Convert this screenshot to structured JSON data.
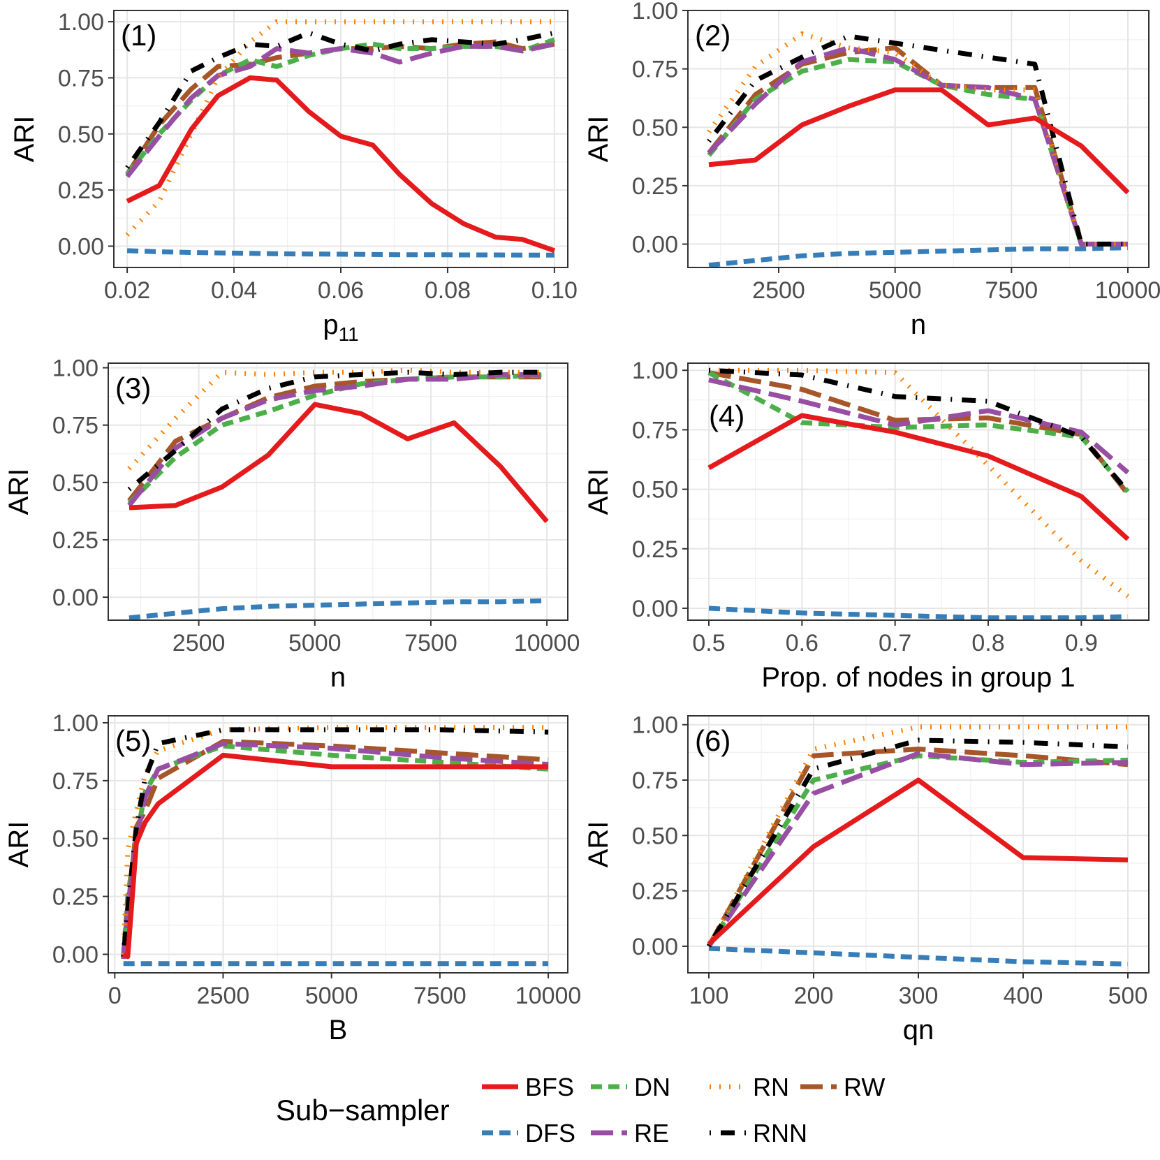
{
  "legend": {
    "title": "Sub−sampler",
    "entries": [
      {
        "key": "BFS",
        "label": "BFS"
      },
      {
        "key": "DN",
        "label": "DN"
      },
      {
        "key": "RN",
        "label": "RN"
      },
      {
        "key": "RW",
        "label": "RW"
      },
      {
        "key": "DFS",
        "label": "DFS"
      },
      {
        "key": "RE",
        "label": "RE"
      },
      {
        "key": "RNN",
        "label": "RNN"
      }
    ]
  },
  "series_style": {
    "BFS": {
      "color": "#e41a1c",
      "dash": "solid"
    },
    "DFS": {
      "color": "#377eb8",
      "dash": "dashed"
    },
    "DN": {
      "color": "#4daf4a",
      "dash": "dashed"
    },
    "RE": {
      "color": "#984ea3",
      "dash": "longdash"
    },
    "RN": {
      "color": "#ff7f00",
      "dash": "dotted"
    },
    "RNN": {
      "color": "#000000",
      "dash": "dotdash"
    },
    "RW": {
      "color": "#a65628",
      "dash": "longdash"
    }
  },
  "chart_data": [
    {
      "type": "line",
      "panel_label": "(1)",
      "xlabel": "p",
      "xlabel_sub": "11",
      "ylabel": "ARI",
      "xlim": [
        0.0175,
        0.1025
      ],
      "ylim": [
        -0.095,
        1.05
      ],
      "xticks": [
        0.02,
        0.04,
        0.06,
        0.08,
        0.1
      ],
      "xtick_labels": [
        "0.02",
        "0.04",
        "0.06",
        "0.08",
        "0.10"
      ],
      "yticks": [
        0,
        0.25,
        0.5,
        0.75,
        1.0
      ],
      "ytick_labels": [
        "0.00",
        "0.25",
        "0.50",
        "0.75",
        "1.00"
      ],
      "x": [
        0.02,
        0.026,
        0.032,
        0.037,
        0.043,
        0.048,
        0.054,
        0.06,
        0.066,
        0.071,
        0.077,
        0.083,
        0.089,
        0.094,
        0.1
      ],
      "series": [
        {
          "name": "BFS",
          "values": [
            0.2,
            0.27,
            0.52,
            0.67,
            0.75,
            0.74,
            0.6,
            0.49,
            0.45,
            0.32,
            0.19,
            0.1,
            0.04,
            0.03,
            -0.02
          ]
        },
        {
          "name": "DFS",
          "values": [
            -0.02,
            -0.025,
            -0.028,
            -0.03,
            -0.032,
            -0.034,
            -0.035,
            -0.036,
            -0.037,
            -0.038,
            -0.038,
            -0.039,
            -0.039,
            -0.04,
            -0.04
          ]
        },
        {
          "name": "DN",
          "values": [
            0.32,
            0.5,
            0.65,
            0.76,
            0.83,
            0.8,
            0.85,
            0.88,
            0.9,
            0.88,
            0.88,
            0.89,
            0.89,
            0.87,
            0.92
          ]
        },
        {
          "name": "RE",
          "values": [
            0.31,
            0.49,
            0.66,
            0.76,
            0.8,
            0.88,
            0.86,
            0.88,
            0.86,
            0.82,
            0.86,
            0.89,
            0.89,
            0.87,
            0.9
          ]
        },
        {
          "name": "RN",
          "values": [
            0.05,
            0.2,
            0.5,
            0.75,
            0.91,
            1.0,
            1.0,
            1.0,
            1.0,
            1.0,
            1.0,
            1.0,
            1.0,
            1.0,
            1.0
          ]
        },
        {
          "name": "RNN",
          "values": [
            0.35,
            0.55,
            0.78,
            0.84,
            0.9,
            0.89,
            0.95,
            0.9,
            0.87,
            0.9,
            0.92,
            0.91,
            0.9,
            0.92,
            0.95
          ]
        },
        {
          "name": "RW",
          "values": [
            0.32,
            0.54,
            0.7,
            0.8,
            0.81,
            0.84,
            0.86,
            0.88,
            0.88,
            0.89,
            0.88,
            0.9,
            0.91,
            0.88,
            0.9
          ]
        }
      ]
    },
    {
      "type": "line",
      "panel_label": "(2)",
      "xlabel": "n",
      "ylabel": "ARI",
      "xlim": [
        550,
        10450
      ],
      "ylim": [
        -0.1,
        1.0
      ],
      "xticks": [
        2500,
        5000,
        7500,
        10000
      ],
      "xtick_labels": [
        "2500",
        "5000",
        "7500",
        "10000"
      ],
      "yticks": [
        0,
        0.25,
        0.5,
        0.75,
        1.0
      ],
      "ytick_labels": [
        "0.00",
        "0.25",
        "0.50",
        "0.75",
        "1.00"
      ],
      "x": [
        1000,
        2000,
        3000,
        4000,
        5000,
        6000,
        7000,
        8000,
        9000,
        10000
      ],
      "series": [
        {
          "name": "BFS",
          "values": [
            0.34,
            0.36,
            0.51,
            0.59,
            0.66,
            0.66,
            0.51,
            0.54,
            0.42,
            0.22
          ]
        },
        {
          "name": "DFS",
          "values": [
            -0.09,
            -0.07,
            -0.05,
            -0.04,
            -0.035,
            -0.03,
            -0.025,
            -0.02,
            -0.02,
            -0.015
          ]
        },
        {
          "name": "DN",
          "values": [
            0.38,
            0.62,
            0.74,
            0.79,
            0.78,
            0.68,
            0.64,
            0.62,
            0.0,
            0.0
          ]
        },
        {
          "name": "RE",
          "values": [
            0.39,
            0.6,
            0.78,
            0.84,
            0.79,
            0.68,
            0.67,
            0.62,
            0.0,
            0.0
          ]
        },
        {
          "name": "RN",
          "values": [
            0.48,
            0.76,
            0.9,
            0.84,
            0.82,
            0.68,
            0.66,
            0.66,
            0.0,
            0.0
          ]
        },
        {
          "name": "RNN",
          "values": [
            0.44,
            0.7,
            0.8,
            0.89,
            0.86,
            0.83,
            0.8,
            0.77,
            0.0,
            0.0
          ]
        },
        {
          "name": "RW",
          "values": [
            0.39,
            0.64,
            0.77,
            0.82,
            0.84,
            0.68,
            0.67,
            0.67,
            0.0,
            0.0
          ]
        }
      ]
    },
    {
      "type": "line",
      "panel_label": "(3)",
      "xlabel": "n",
      "ylabel": "ARI",
      "xlim": [
        550,
        10450
      ],
      "ylim": [
        -0.1,
        1.02
      ],
      "xticks": [
        2500,
        5000,
        7500,
        10000
      ],
      "xtick_labels": [
        "2500",
        "5000",
        "7500",
        "10000"
      ],
      "yticks": [
        0,
        0.25,
        0.5,
        0.75,
        1.0
      ],
      "ytick_labels": [
        "0.00",
        "0.25",
        "0.50",
        "0.75",
        "1.00"
      ],
      "x": [
        1000,
        2000,
        3000,
        4000,
        5000,
        6000,
        7000,
        8000,
        9000,
        10000
      ],
      "series": [
        {
          "name": "BFS",
          "values": [
            0.39,
            0.4,
            0.48,
            0.62,
            0.84,
            0.8,
            0.69,
            0.76,
            0.57,
            0.33
          ]
        },
        {
          "name": "DFS",
          "values": [
            -0.09,
            -0.07,
            -0.05,
            -0.04,
            -0.035,
            -0.03,
            -0.025,
            -0.02,
            -0.02,
            -0.015
          ]
        },
        {
          "name": "DN",
          "values": [
            0.41,
            0.61,
            0.75,
            0.81,
            0.88,
            0.93,
            0.95,
            0.96,
            0.96,
            0.97
          ]
        },
        {
          "name": "RE",
          "values": [
            0.4,
            0.65,
            0.78,
            0.86,
            0.9,
            0.92,
            0.95,
            0.95,
            0.97,
            0.97
          ]
        },
        {
          "name": "RN",
          "values": [
            0.56,
            0.78,
            0.98,
            0.97,
            0.98,
            0.98,
            0.99,
            0.98,
            0.98,
            0.98
          ]
        },
        {
          "name": "RNN",
          "values": [
            0.47,
            0.64,
            0.82,
            0.91,
            0.96,
            0.97,
            0.98,
            0.97,
            0.98,
            0.98
          ]
        },
        {
          "name": "RW",
          "values": [
            0.42,
            0.68,
            0.78,
            0.87,
            0.92,
            0.94,
            0.95,
            0.96,
            0.96,
            0.96
          ]
        }
      ]
    },
    {
      "type": "line",
      "panel_label": "(4)",
      "xlabel": "Prop. of nodes in group 1",
      "ylabel": "ARI",
      "xlim": [
        0.4775,
        0.9725
      ],
      "ylim": [
        -0.05,
        1.03
      ],
      "xticks": [
        0.5,
        0.6,
        0.7,
        0.8,
        0.9
      ],
      "xtick_labels": [
        "0.5",
        "0.6",
        "0.7",
        "0.8",
        "0.9"
      ],
      "yticks": [
        0,
        0.25,
        0.5,
        0.75,
        1.0
      ],
      "ytick_labels": [
        "0.00",
        "0.25",
        "0.50",
        "0.75",
        "1.00"
      ],
      "x": [
        0.5,
        0.6,
        0.7,
        0.8,
        0.9,
        0.95
      ],
      "series": [
        {
          "name": "BFS",
          "values": [
            0.59,
            0.81,
            0.74,
            0.64,
            0.47,
            0.29
          ]
        },
        {
          "name": "DFS",
          "values": [
            0.0,
            -0.02,
            -0.03,
            -0.04,
            -0.04,
            -0.035
          ]
        },
        {
          "name": "DN",
          "values": [
            0.99,
            0.78,
            0.76,
            0.77,
            0.72,
            0.49
          ]
        },
        {
          "name": "RE",
          "values": [
            0.96,
            0.87,
            0.77,
            0.83,
            0.74,
            0.57
          ]
        },
        {
          "name": "RN",
          "values": [
            1.0,
            1.0,
            0.99,
            0.6,
            0.2,
            0.05
          ]
        },
        {
          "name": "RNN",
          "values": [
            1.0,
            0.98,
            0.89,
            0.87,
            0.72,
            0.49
          ]
        },
        {
          "name": "RW",
          "values": [
            0.99,
            0.92,
            0.79,
            0.8,
            0.73,
            0.48
          ]
        }
      ]
    },
    {
      "type": "line",
      "panel_label": "(5)",
      "xlabel": "B",
      "ylabel": "ARI",
      "xlim": [
        -150,
        10450
      ],
      "ylim": [
        -0.08,
        1.03
      ],
      "xticks": [
        0,
        2500,
        5000,
        7500,
        10000
      ],
      "xtick_labels": [
        "0",
        "2500",
        "5000",
        "7500",
        "10000"
      ],
      "yticks": [
        0,
        0.25,
        0.5,
        0.75,
        1.0
      ],
      "ytick_labels": [
        "0.00",
        "0.25",
        "0.50",
        "0.75",
        "1.00"
      ],
      "x": [
        200,
        300,
        500,
        700,
        1000,
        2500,
        5000,
        7500,
        10000
      ],
      "series": [
        {
          "name": "BFS",
          "values": [
            0.0,
            -0.01,
            0.48,
            0.57,
            0.65,
            0.86,
            0.81,
            0.81,
            0.81
          ]
        },
        {
          "name": "DFS",
          "values": [
            -0.04,
            -0.04,
            -0.04,
            -0.04,
            -0.04,
            -0.04,
            -0.04,
            -0.04,
            -0.04
          ]
        },
        {
          "name": "DN",
          "values": [
            -0.01,
            0.25,
            0.5,
            0.7,
            0.8,
            0.9,
            0.86,
            0.83,
            0.8
          ]
        },
        {
          "name": "RE",
          "values": [
            -0.02,
            0.2,
            0.5,
            0.68,
            0.8,
            0.91,
            0.89,
            0.85,
            0.82
          ]
        },
        {
          "name": "RN",
          "values": [
            0.0,
            0.45,
            0.62,
            0.78,
            0.88,
            0.97,
            0.98,
            0.98,
            0.98
          ]
        },
        {
          "name": "RNN",
          "values": [
            -0.01,
            0.2,
            0.55,
            0.76,
            0.91,
            0.97,
            0.97,
            0.97,
            0.96
          ]
        },
        {
          "name": "RW",
          "values": [
            -0.01,
            0.18,
            0.55,
            0.62,
            0.76,
            0.92,
            0.9,
            0.87,
            0.84
          ]
        }
      ]
    },
    {
      "type": "line",
      "panel_label": "(6)",
      "xlabel": "qn",
      "ylabel": "ARI",
      "xlim": [
        80,
        520
      ],
      "ylim": [
        -0.12,
        1.04
      ],
      "xticks": [
        100,
        200,
        300,
        400,
        500
      ],
      "xtick_labels": [
        "100",
        "200",
        "300",
        "400",
        "500"
      ],
      "yticks": [
        0,
        0.25,
        0.5,
        0.75,
        1.0
      ],
      "ytick_labels": [
        "0.00",
        "0.25",
        "0.50",
        "0.75",
        "1.00"
      ],
      "x": [
        100,
        200,
        300,
        400,
        500
      ],
      "series": [
        {
          "name": "BFS",
          "values": [
            0.01,
            0.45,
            0.75,
            0.4,
            0.39
          ]
        },
        {
          "name": "DFS",
          "values": [
            -0.01,
            -0.03,
            -0.05,
            -0.07,
            -0.08
          ]
        },
        {
          "name": "DN",
          "values": [
            0.0,
            0.75,
            0.86,
            0.83,
            0.84
          ]
        },
        {
          "name": "RE",
          "values": [
            0.0,
            0.69,
            0.87,
            0.82,
            0.83
          ]
        },
        {
          "name": "RN",
          "values": [
            0.0,
            0.89,
            0.99,
            0.99,
            0.99
          ]
        },
        {
          "name": "RNN",
          "values": [
            0.0,
            0.8,
            0.93,
            0.92,
            0.9
          ]
        },
        {
          "name": "RW",
          "values": [
            0.0,
            0.86,
            0.89,
            0.86,
            0.82
          ]
        }
      ]
    }
  ]
}
